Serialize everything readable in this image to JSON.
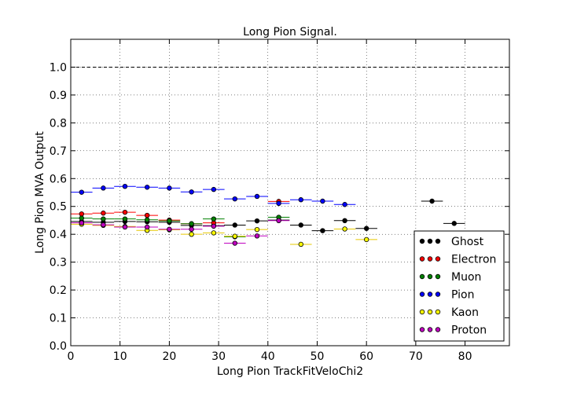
{
  "chart_data": {
    "type": "scatter",
    "title": "Long Pion Signal.",
    "xlabel": "Long Pion TrackFitVeloChi2",
    "ylabel": "Long Pion MVA Output",
    "xlim": [
      0,
      89
    ],
    "ylim": [
      0.0,
      1.1
    ],
    "xticks": [
      "0",
      "10",
      "20",
      "30",
      "40",
      "50",
      "60",
      "70",
      "80"
    ],
    "yticks": [
      "0.0",
      "0.1",
      "0.2",
      "0.3",
      "0.4",
      "0.5",
      "0.6",
      "0.7",
      "0.8",
      "0.9",
      "1.0"
    ],
    "grid": true,
    "reference_line": 1.0,
    "legend_position": "lower-right",
    "series": [
      {
        "name": "Ghost",
        "color": "#000000",
        "points": [
          [
            2.2,
            0.446
          ],
          [
            6.6,
            0.443
          ],
          [
            11.0,
            0.446
          ],
          [
            15.5,
            0.445
          ],
          [
            20.0,
            0.443
          ],
          [
            24.5,
            0.432
          ],
          [
            29.0,
            0.431
          ],
          [
            33.3,
            0.433
          ],
          [
            37.8,
            0.448
          ],
          [
            42.2,
            0.451
          ],
          [
            46.7,
            0.433
          ],
          [
            51.1,
            0.413
          ],
          [
            55.6,
            0.449
          ],
          [
            60.0,
            0.421
          ],
          [
            73.3,
            0.519
          ],
          [
            77.8,
            0.439
          ]
        ]
      },
      {
        "name": "Electron",
        "color": "#ff0000",
        "points": [
          [
            2.2,
            0.473
          ],
          [
            6.6,
            0.476
          ],
          [
            11.0,
            0.479
          ],
          [
            15.5,
            0.468
          ],
          [
            20.0,
            0.451
          ],
          [
            24.5,
            0.438
          ],
          [
            29.0,
            0.441
          ],
          [
            42.2,
            0.518
          ]
        ]
      },
      {
        "name": "Muon",
        "color": "#008000",
        "points": [
          [
            2.2,
            0.458
          ],
          [
            6.6,
            0.455
          ],
          [
            11.0,
            0.455
          ],
          [
            15.5,
            0.452
          ],
          [
            20.0,
            0.448
          ],
          [
            24.5,
            0.438
          ],
          [
            29.0,
            0.455
          ],
          [
            33.3,
            0.391
          ],
          [
            42.2,
            0.461
          ]
        ]
      },
      {
        "name": "Pion",
        "color": "#0000ff",
        "points": [
          [
            2.2,
            0.551
          ],
          [
            6.6,
            0.566
          ],
          [
            11.0,
            0.572
          ],
          [
            15.5,
            0.569
          ],
          [
            20.0,
            0.566
          ],
          [
            24.5,
            0.552
          ],
          [
            29.0,
            0.561
          ],
          [
            33.3,
            0.527
          ],
          [
            37.8,
            0.536
          ],
          [
            42.2,
            0.511
          ],
          [
            46.7,
            0.524
          ],
          [
            51.1,
            0.519
          ],
          [
            55.6,
            0.507
          ]
        ]
      },
      {
        "name": "Kaon",
        "color": "#ffff00",
        "points": [
          [
            2.2,
            0.436
          ],
          [
            6.6,
            0.432
          ],
          [
            11.0,
            0.428
          ],
          [
            15.5,
            0.414
          ],
          [
            20.0,
            0.416
          ],
          [
            24.5,
            0.4
          ],
          [
            29.0,
            0.405
          ],
          [
            33.3,
            0.393
          ],
          [
            37.8,
            0.417
          ],
          [
            46.7,
            0.364
          ],
          [
            55.6,
            0.419
          ],
          [
            60.0,
            0.381
          ]
        ]
      },
      {
        "name": "Proton",
        "color": "#bf00bf",
        "points": [
          [
            2.2,
            0.441
          ],
          [
            6.6,
            0.434
          ],
          [
            11.0,
            0.426
          ],
          [
            15.5,
            0.426
          ],
          [
            20.0,
            0.418
          ],
          [
            24.5,
            0.418
          ],
          [
            29.0,
            0.429
          ],
          [
            33.3,
            0.368
          ],
          [
            37.8,
            0.394
          ],
          [
            42.2,
            0.449
          ]
        ]
      }
    ]
  }
}
